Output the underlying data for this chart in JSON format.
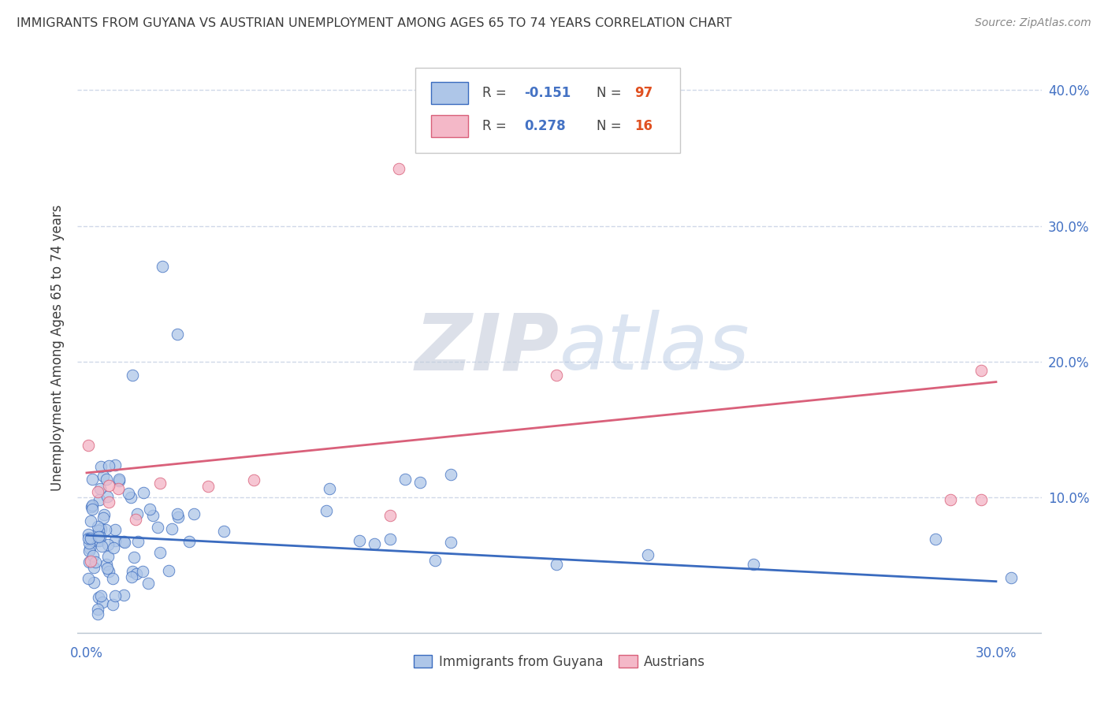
{
  "title": "IMMIGRANTS FROM GUYANA VS AUSTRIAN UNEMPLOYMENT AMONG AGES 65 TO 74 YEARS CORRELATION CHART",
  "source": "Source: ZipAtlas.com",
  "ylabel_label": "Unemployment Among Ages 65 to 74 years",
  "xlim": [
    -0.003,
    0.315
  ],
  "ylim": [
    -0.005,
    0.425
  ],
  "r1": "-0.151",
  "n1": "97",
  "r2": "0.278",
  "n2": "16",
  "series1_face": "#aec6e8",
  "series2_face": "#f4b8c8",
  "line1_color": "#3a6bbf",
  "line2_color": "#d9607a",
  "background_color": "#ffffff",
  "grid_color": "#d0d8e8",
  "title_color": "#3c3c3c",
  "source_color": "#888888",
  "axis_label_color": "#4472c4",
  "series1_label": "Immigrants from Guyana",
  "series2_label": "Austrians",
  "y_ticks": [
    0.1,
    0.2,
    0.3,
    0.4
  ],
  "x_ticks": [
    0.0,
    0.05,
    0.1,
    0.15,
    0.2,
    0.25,
    0.3
  ],
  "line1_x0": 0.0,
  "line1_x1": 0.3,
  "line1_y0": 0.072,
  "line1_y1": 0.038,
  "line2_x0": 0.0,
  "line2_x1": 0.3,
  "line2_y0": 0.118,
  "line2_y1": 0.185,
  "watermark": "ZIPatlas",
  "watermark_color1": "#c8cfe0",
  "watermark_color2": "#b0c8e4"
}
